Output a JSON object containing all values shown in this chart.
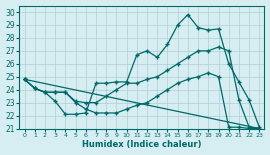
{
  "xlabel": "Humidex (Indice chaleur)",
  "xlim": [
    -0.5,
    23.5
  ],
  "ylim": [
    21,
    30.5
  ],
  "yticks": [
    21,
    22,
    23,
    24,
    25,
    26,
    27,
    28,
    29,
    30
  ],
  "xticks": [
    0,
    1,
    2,
    3,
    4,
    5,
    6,
    7,
    8,
    9,
    10,
    11,
    12,
    13,
    14,
    15,
    16,
    17,
    18,
    19,
    20,
    21,
    22,
    23
  ],
  "bg_color": "#d6eef2",
  "grid_color": "#b0cdd4",
  "line_color": "#006868",
  "lines": [
    {
      "x": [
        0,
        1,
        2,
        3,
        4,
        5,
        6,
        7,
        8,
        9,
        10,
        11,
        12,
        13,
        14,
        15,
        16,
        17,
        18,
        19,
        20,
        21,
        22,
        23
      ],
      "y": [
        24.8,
        24.1,
        23.8,
        23.1,
        22.1,
        22.1,
        22.2,
        24.5,
        24.5,
        24.6,
        24.6,
        26.7,
        27.0,
        26.5,
        27.5,
        29.0,
        29.8,
        28.8,
        28.6,
        28.7,
        26.0,
        24.6,
        23.2,
        21.1
      ]
    },
    {
      "x": [
        0,
        1,
        2,
        3,
        4,
        5,
        6,
        7,
        8,
        9,
        10,
        11,
        12,
        13,
        14,
        15,
        16,
        17,
        18,
        19,
        20,
        21,
        22,
        23
      ],
      "y": [
        24.8,
        24.1,
        23.8,
        23.8,
        23.8,
        23.1,
        23.0,
        23.0,
        23.5,
        24.0,
        24.5,
        24.5,
        24.8,
        25.0,
        25.5,
        26.0,
        26.5,
        27.0,
        27.0,
        27.3,
        27.0,
        23.2,
        21.1,
        21.0
      ]
    },
    {
      "x": [
        0,
        1,
        2,
        3,
        4,
        5,
        6,
        7,
        8,
        9,
        10,
        11,
        12,
        13,
        14,
        15,
        16,
        17,
        18,
        19,
        20,
        21,
        22,
        23
      ],
      "y": [
        24.8,
        24.1,
        23.8,
        23.8,
        23.8,
        23.0,
        22.5,
        22.2,
        22.2,
        22.2,
        22.5,
        22.8,
        23.0,
        23.5,
        24.0,
        24.5,
        24.8,
        25.0,
        25.3,
        25.0,
        21.1,
        21.1,
        21.0,
        21.0
      ]
    },
    {
      "x": [
        0,
        23
      ],
      "y": [
        24.8,
        21.0
      ]
    }
  ],
  "marker": "+",
  "markersize": 3.5,
  "linewidth": 0.9
}
